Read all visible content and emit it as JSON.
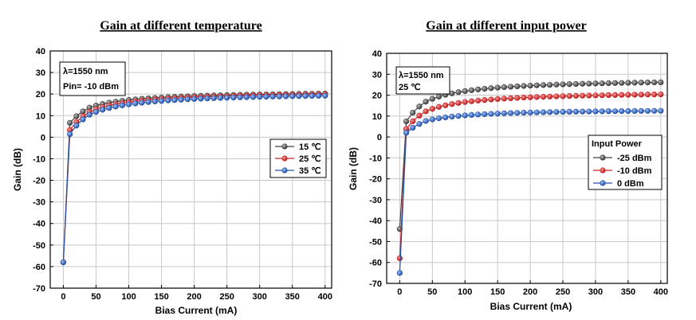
{
  "chart_data": [
    {
      "type": "line",
      "title": "Gain at different temperature",
      "xlabel": "Bias Current (mA)",
      "ylabel": "Gain (dB)",
      "xlim": [
        -20,
        410
      ],
      "ylim": [
        -70,
        40
      ],
      "xticks": [
        0,
        50,
        100,
        150,
        200,
        250,
        300,
        350,
        400
      ],
      "yticks": [
        -70,
        -60,
        -50,
        -40,
        -30,
        -20,
        -10,
        0,
        10,
        20,
        30,
        40
      ],
      "grid": true,
      "annotations": [
        "λ=1550 nm",
        "Pin= -10 dBm"
      ],
      "legend": {
        "title": "",
        "position": "center-right",
        "labels": [
          "15 ℃",
          "25 ℃",
          "35 ℃"
        ]
      },
      "series": [
        {
          "name": "15 ℃",
          "color": "#404040",
          "start": [
            0,
            -58
          ],
          "a": 21.5,
          "b": 560,
          "k": 32,
          "bias": 5
        },
        {
          "name": "25 ℃",
          "color": "#cc2222",
          "start": [
            0,
            -58
          ],
          "a": 21.5,
          "b": 700,
          "k": 32,
          "bias": 5
        },
        {
          "name": "35 ℃",
          "color": "#2255aa",
          "start": [
            0,
            -58
          ],
          "a": 21.0,
          "b": 760,
          "k": 32,
          "bias": 8
        }
      ]
    },
    {
      "type": "line",
      "title": "Gain at different input power",
      "xlabel": "Bias Current (mA)",
      "ylabel": "Gain (dB)",
      "xlim": [
        -20,
        410
      ],
      "ylim": [
        -70,
        40
      ],
      "xticks": [
        0,
        50,
        100,
        150,
        200,
        250,
        300,
        350,
        400
      ],
      "yticks": [
        -70,
        -60,
        -50,
        -40,
        -30,
        -20,
        -10,
        0,
        10,
        20,
        30,
        40
      ],
      "grid": true,
      "annotations": [
        "λ=1550 nm",
        "25 ℃"
      ],
      "legend": {
        "title": "Input Power",
        "position": "center-right",
        "labels": [
          "-25 dBm",
          "-10 dBm",
          "0 dBm"
        ]
      },
      "series": [
        {
          "name": "-25 dBm",
          "color": "#404040",
          "start": [
            0,
            -44
          ],
          "a": 28.0,
          "b": 800,
          "k": 32,
          "bias": 5
        },
        {
          "name": "-10 dBm",
          "color": "#cc2222",
          "start": [
            0,
            -58
          ],
          "a": 22.0,
          "b": 700,
          "k": 32,
          "bias": 5
        },
        {
          "name": "0 dBm",
          "color": "#2255aa",
          "start": [
            0,
            -65
          ],
          "a": 13.5,
          "b": 420,
          "k": 32,
          "bias": 5
        }
      ]
    }
  ]
}
